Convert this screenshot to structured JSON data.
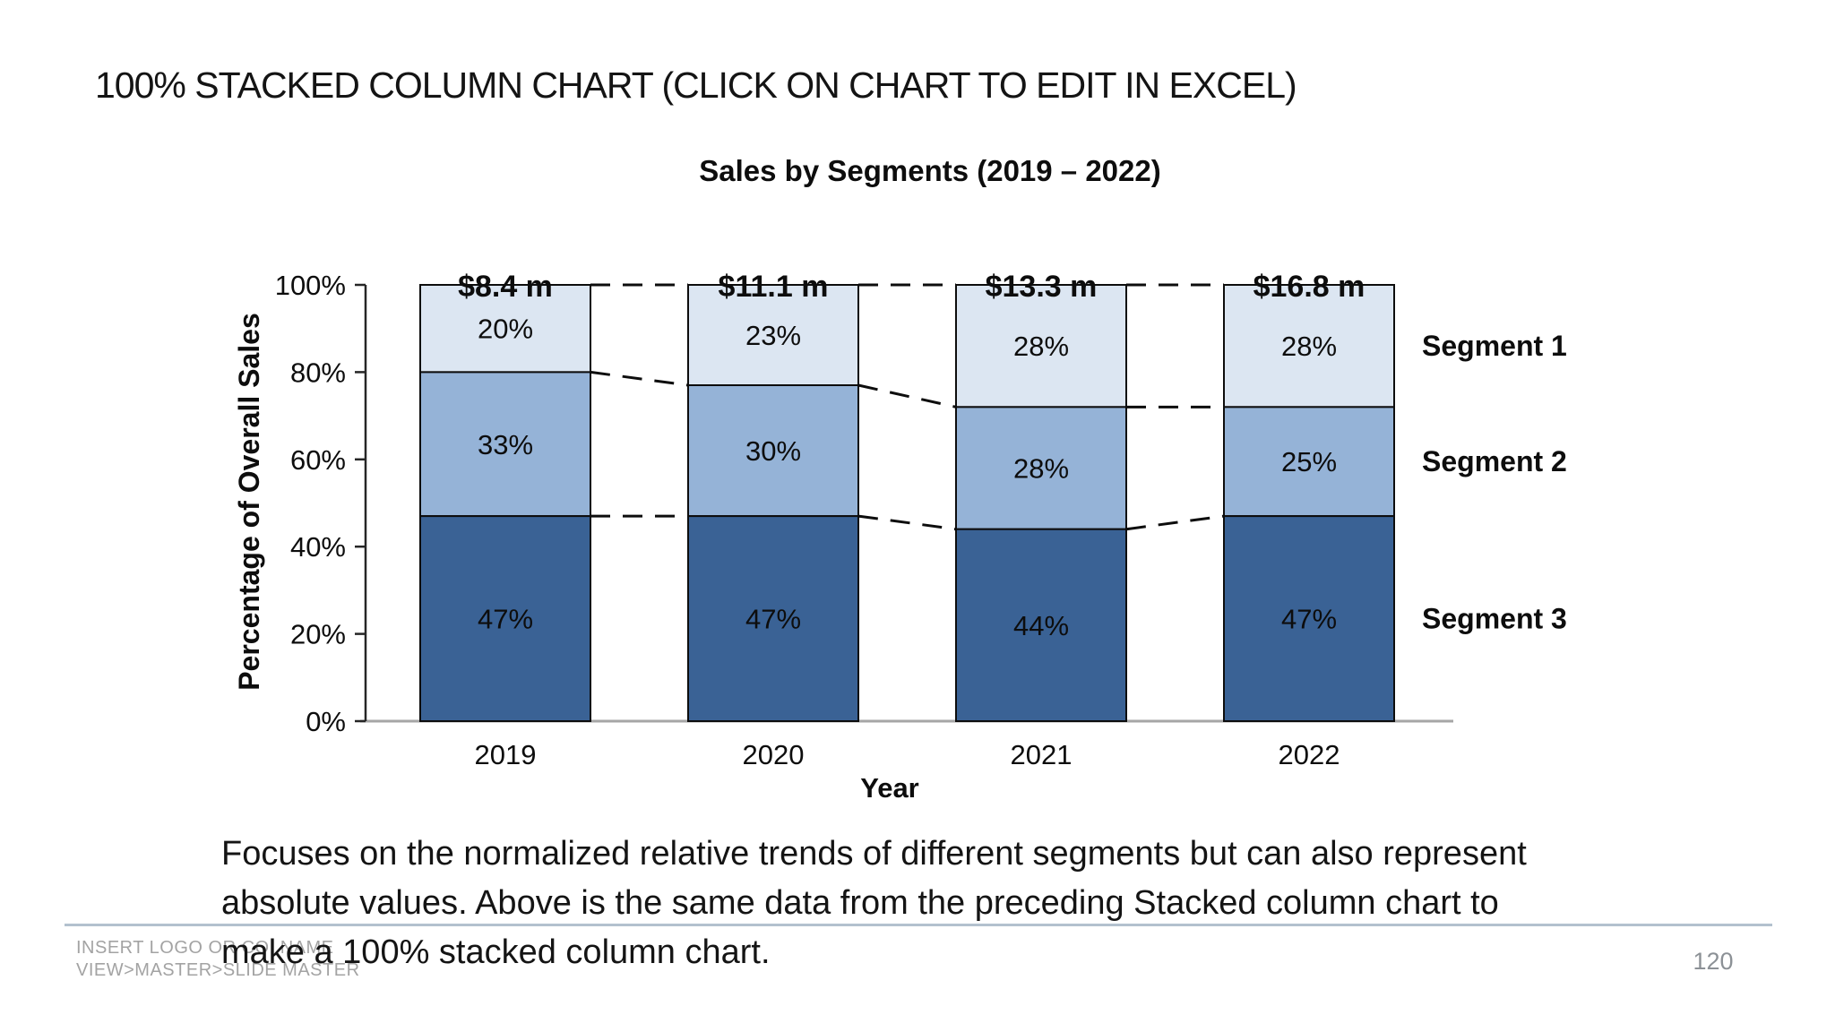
{
  "slide": {
    "title": "100% STACKED COLUMN CHART (CLICK ON CHART TO EDIT IN EXCEL)",
    "description_lines": [
      "Focuses on the normalized relative trends of different segments but can also represent",
      "absolute values. Above is the same data from the preceding Stacked column chart to",
      "make a 100% stacked column chart."
    ],
    "footer": {
      "line1": "INSERT LOGO OR CO. NAME",
      "line2": "VIEW>MASTER>SLIDE MASTER"
    },
    "page_number": "120"
  },
  "chart_data": {
    "type": "bar",
    "variant": "100%-stacked-column",
    "title": "Sales by Segments (2019 – 2022)",
    "categories": [
      "2019",
      "2020",
      "2021",
      "2022"
    ],
    "column_totals": [
      "$8.4 m",
      "$11.1 m",
      "$13.3 m",
      "$16.8 m"
    ],
    "series": [
      {
        "name": "Segment 1",
        "color": "#dce6f2",
        "values": [
          20,
          23,
          28,
          28
        ]
      },
      {
        "name": "Segment 2",
        "color": "#95b3d7",
        "values": [
          33,
          30,
          28,
          25
        ]
      },
      {
        "name": "Segment 3",
        "color": "#3a6295",
        "values": [
          47,
          47,
          44,
          47
        ]
      }
    ],
    "xlabel": "Year",
    "ylabel": "Percentage of Overall Sales",
    "ylim": [
      0,
      100
    ],
    "y_ticks": [
      0,
      20,
      40,
      60,
      80,
      100
    ],
    "y_tick_suffix": "%",
    "value_suffix": "%",
    "grid": false,
    "legend_position": "right",
    "connector_lines": "dashed"
  },
  "colors": {
    "bar_border": "#0d0d0d",
    "dashed_connector": "#0d0d0d",
    "x_axis_line": "#a6a6a6",
    "y_axis_line": "#262626",
    "label_text": "#0d0d0d",
    "footer_text": "#a3a3a3",
    "divider_line": "#b3c1ce"
  }
}
